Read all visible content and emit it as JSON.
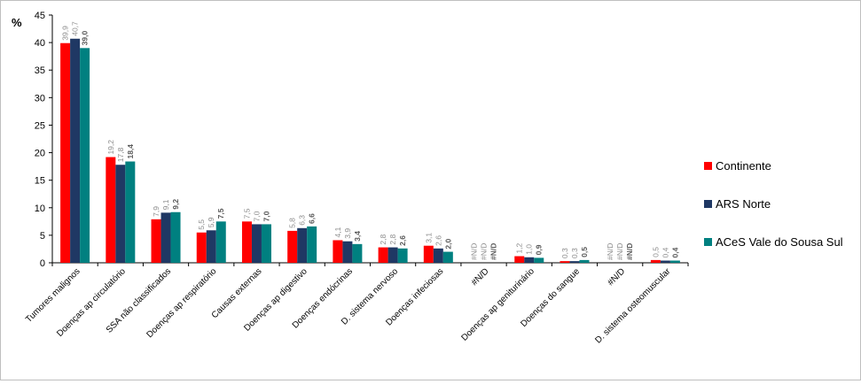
{
  "chart_data": {
    "type": "bar",
    "ylabel": "%",
    "ylim": [
      0,
      45
    ],
    "yticks": [
      0,
      5,
      10,
      15,
      20,
      25,
      30,
      35,
      40,
      45
    ],
    "grid": false,
    "legend_position": "right",
    "categories": [
      "Tumores malignos",
      "Doenças ap circulatório",
      "SSA não classificados",
      "Doenças ap respiratório",
      "Causas externas",
      "Doenças ap digestivo",
      "Doenças endócrinas",
      "D. sistema nervoso",
      "Doenças infeciosas",
      "#N/D",
      "Doenças ap geniturinário",
      "Doenças do sangue",
      "#N/D",
      "D. sistema osteomuscular"
    ],
    "series": [
      {
        "name": "Continente",
        "color": "#ff0000",
        "values": [
          39.9,
          19.2,
          7.9,
          5.5,
          7.5,
          5.8,
          4.1,
          2.8,
          3.1,
          null,
          1.2,
          0.3,
          null,
          0.5
        ],
        "labels": [
          "39,9",
          "19,2",
          "7,9",
          "5,5",
          "7,5",
          "5,8",
          "4,1",
          "2,8",
          "3,1",
          "#N/D",
          "1,2",
          "0,3",
          "#N/D",
          "0,5"
        ],
        "label_bold": false
      },
      {
        "name": "ARS Norte",
        "color": "#1f3864",
        "values": [
          40.7,
          17.8,
          9.1,
          5.9,
          7.0,
          6.3,
          3.9,
          2.8,
          2.6,
          null,
          1.0,
          0.3,
          null,
          0.4
        ],
        "labels": [
          "40,7",
          "17,8",
          "9,1",
          "5,9",
          "7,0",
          "6,3",
          "3,9",
          "2,8",
          "2,6",
          "#N/D",
          "1,0",
          "0,3",
          "#N/D",
          "0,4"
        ],
        "label_bold": false
      },
      {
        "name": "ACeS Vale do Sousa Sul",
        "color": "#008080",
        "values": [
          39.0,
          18.4,
          9.2,
          7.5,
          7.0,
          6.6,
          3.4,
          2.6,
          2.0,
          null,
          0.9,
          0.5,
          null,
          0.4
        ],
        "labels": [
          "39,0",
          "18,4",
          "9,2",
          "7,5",
          "7,0",
          "6,6",
          "3,4",
          "2,6",
          "2,0",
          "#N/D",
          "0,9",
          "0,5",
          "#N/D",
          "0,4"
        ],
        "label_bold": true
      }
    ]
  }
}
